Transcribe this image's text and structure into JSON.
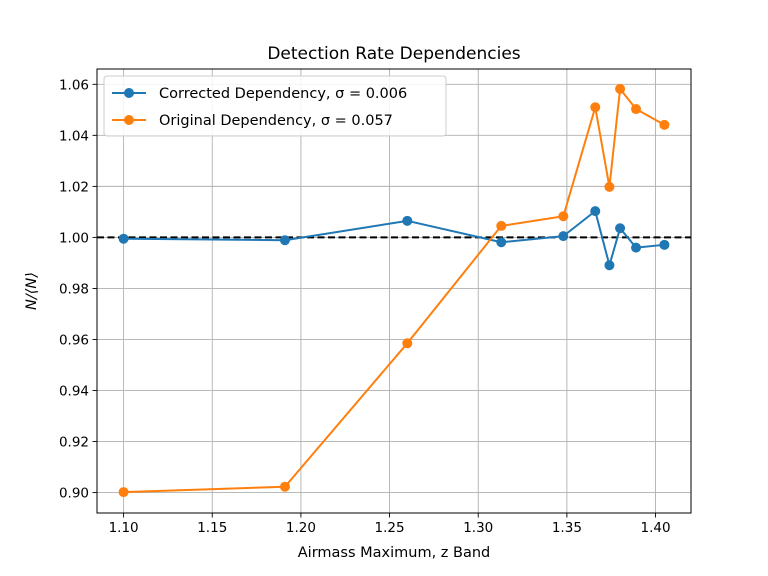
{
  "chart_data": {
    "type": "line",
    "title": "Detection Rate Dependencies",
    "xlabel": "Airmass Maximum, z Band",
    "ylabel": "N/⟨N⟩",
    "xlim": [
      1.085,
      1.42
    ],
    "ylim": [
      0.892,
      1.066
    ],
    "xticks": [
      1.1,
      1.15,
      1.2,
      1.25,
      1.3,
      1.35,
      1.4
    ],
    "yticks": [
      0.9,
      0.92,
      0.94,
      0.96,
      0.98,
      1.0,
      1.02,
      1.04,
      1.06
    ],
    "xtick_labels": [
      "1.10",
      "1.15",
      "1.20",
      "1.25",
      "1.30",
      "1.35",
      "1.40"
    ],
    "ytick_labels": [
      "0.90",
      "0.92",
      "0.94",
      "0.96",
      "0.98",
      "1.00",
      "1.02",
      "1.04",
      "1.06"
    ],
    "grid": true,
    "legend_position": "top-left",
    "reference_line": {
      "y": 1.0,
      "style": "dashed",
      "color": "#000000"
    },
    "series": [
      {
        "name": "Corrected Dependency, σ = 0.006",
        "color": "#1f77b4",
        "x": [
          1.1,
          1.191,
          1.26,
          1.313,
          1.348,
          1.366,
          1.374,
          1.38,
          1.389,
          1.405
        ],
        "y": [
          0.9995,
          0.9989,
          1.0065,
          0.9981,
          1.0005,
          1.0103,
          0.9891,
          1.0036,
          0.996,
          0.9971
        ]
      },
      {
        "name": "Original Dependency, σ = 0.057",
        "color": "#ff7f0e",
        "x": [
          1.1,
          1.191,
          1.26,
          1.313,
          1.348,
          1.366,
          1.374,
          1.38,
          1.389,
          1.405
        ],
        "y": [
          0.9002,
          0.9023,
          0.9585,
          1.0045,
          1.0083,
          1.051,
          1.0198,
          1.0582,
          1.0503,
          1.0441
        ]
      }
    ]
  }
}
